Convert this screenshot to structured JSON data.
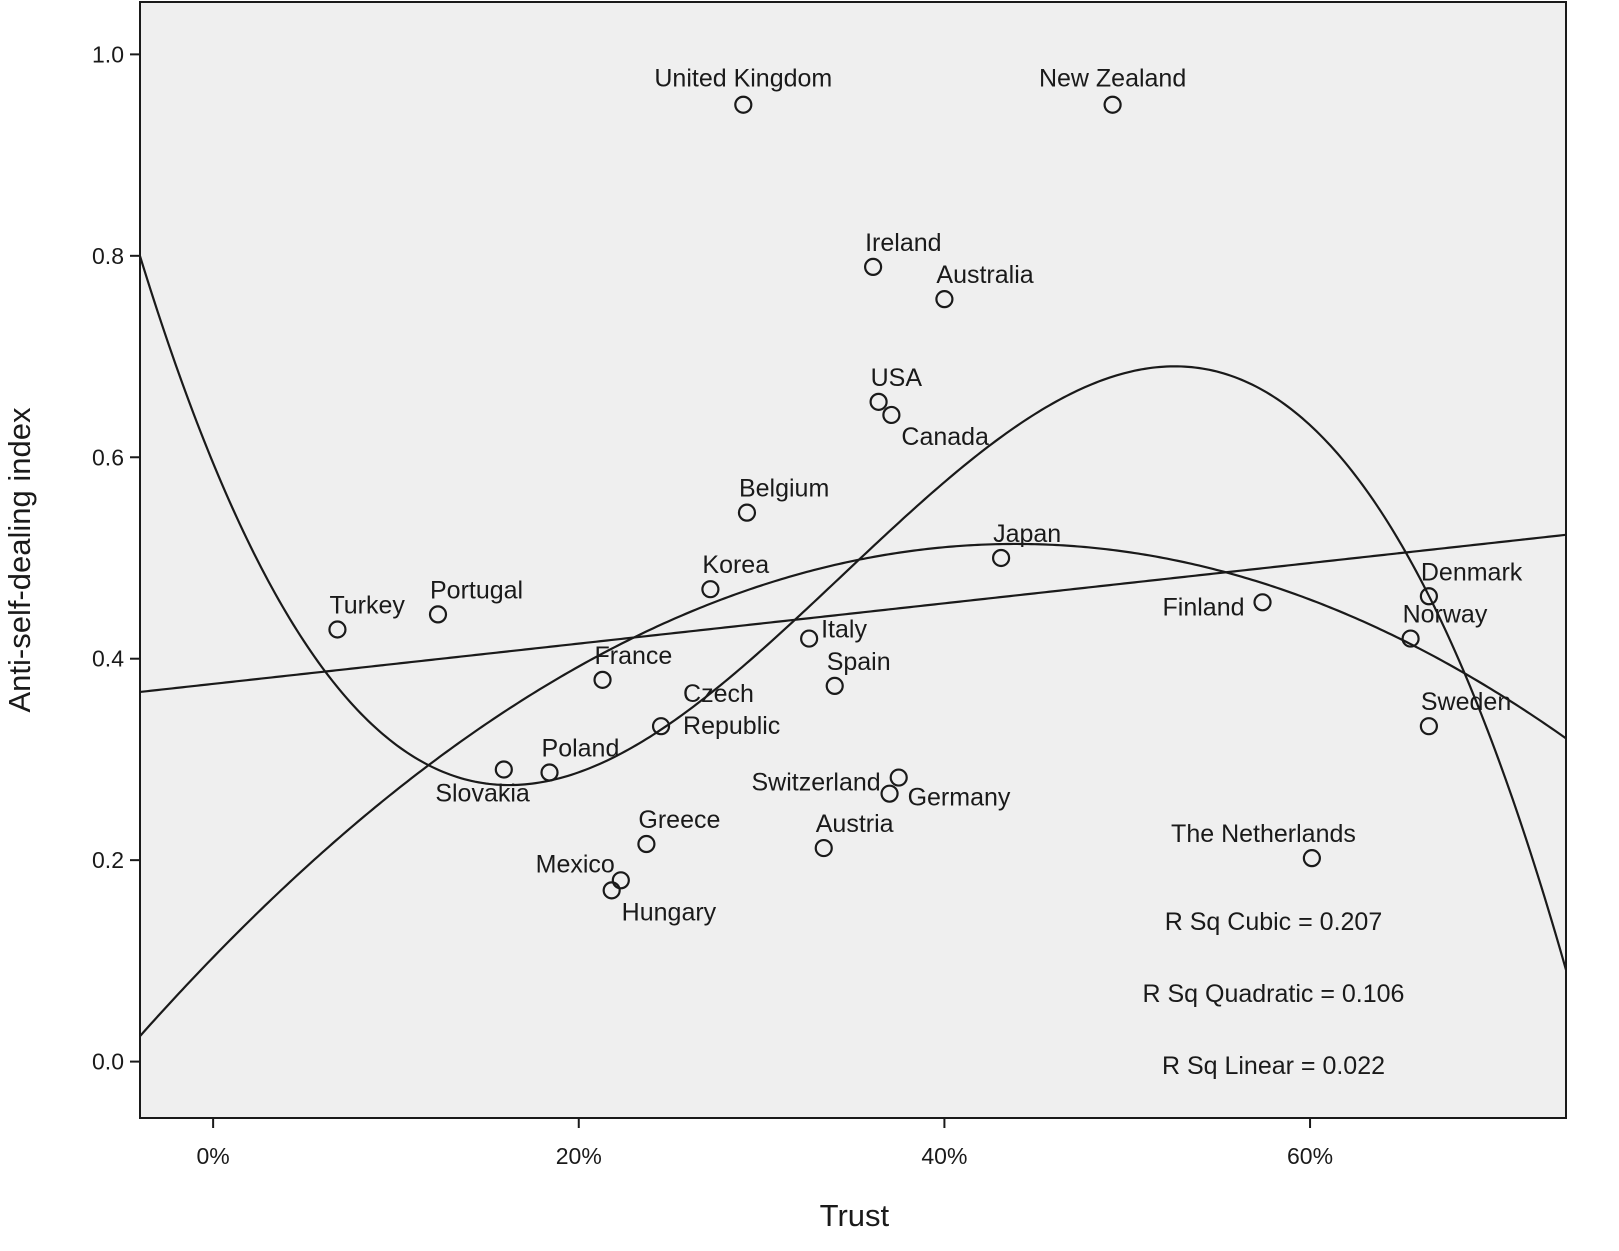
{
  "chart_data": {
    "type": "scatter",
    "xlabel": "Trust",
    "ylabel": "Anti-self-dealing index",
    "xlim": [
      -0.04,
      0.74
    ],
    "ylim": [
      -0.056,
      1.052
    ],
    "x_ticks": [
      {
        "value": 0.0,
        "label": "0%"
      },
      {
        "value": 0.2,
        "label": "20%"
      },
      {
        "value": 0.4,
        "label": "40%"
      },
      {
        "value": 0.6,
        "label": "60%"
      }
    ],
    "y_ticks": [
      {
        "value": 0.0,
        "label": "0.0"
      },
      {
        "value": 0.2,
        "label": "0.2"
      },
      {
        "value": 0.4,
        "label": "0.4"
      },
      {
        "value": 0.6,
        "label": "0.6"
      },
      {
        "value": 0.8,
        "label": "0.8"
      },
      {
        "value": 1.0,
        "label": "1.0"
      }
    ],
    "grid": false,
    "background": "#efefef",
    "line_color": "#1a1a1a",
    "points": [
      {
        "label": "United Kingdom",
        "x": 0.29,
        "y": 0.95,
        "anchor": "above"
      },
      {
        "label": "New Zealand",
        "x": 0.492,
        "y": 0.95,
        "anchor": "above"
      },
      {
        "label": "Ireland",
        "x": 0.361,
        "y": 0.789,
        "anchor": "above-right"
      },
      {
        "label": "Australia",
        "x": 0.4,
        "y": 0.757,
        "anchor": "above-right"
      },
      {
        "label": "USA",
        "x": 0.364,
        "y": 0.655,
        "anchor": "above-right"
      },
      {
        "label": "Canada",
        "x": 0.371,
        "y": 0.642,
        "anchor": "below-right"
      },
      {
        "label": "Belgium",
        "x": 0.292,
        "y": 0.545,
        "anchor": "above-right"
      },
      {
        "label": "Japan",
        "x": 0.431,
        "y": 0.5,
        "anchor": "above-right"
      },
      {
        "label": "Korea",
        "x": 0.272,
        "y": 0.469,
        "anchor": "above-right"
      },
      {
        "label": "Turkey",
        "x": 0.068,
        "y": 0.429,
        "anchor": "above-right"
      },
      {
        "label": "Portugal",
        "x": 0.123,
        "y": 0.444,
        "anchor": "above-right"
      },
      {
        "label": "Finland",
        "x": 0.574,
        "y": 0.456,
        "anchor": "left"
      },
      {
        "label": "Denmark",
        "x": 0.665,
        "y": 0.462,
        "anchor": "above-right"
      },
      {
        "label": "Norway",
        "x": 0.655,
        "y": 0.42,
        "anchor": "above-right"
      },
      {
        "label": "Italy",
        "x": 0.326,
        "y": 0.42,
        "anchor": "right"
      },
      {
        "label": "France",
        "x": 0.213,
        "y": 0.379,
        "anchor": "above-right"
      },
      {
        "label": "Spain",
        "x": 0.34,
        "y": 0.373,
        "anchor": "above-right"
      },
      {
        "label": "Sweden",
        "x": 0.665,
        "y": 0.333,
        "anchor": "above-right"
      },
      {
        "label": "Czech Republic",
        "x": 0.245,
        "y": 0.333,
        "anchor": "right-2line"
      },
      {
        "label": "Poland",
        "x": 0.184,
        "y": 0.287,
        "anchor": "above-right"
      },
      {
        "label": "Slovakia",
        "x": 0.159,
        "y": 0.29,
        "anchor": "below-left"
      },
      {
        "label": "Switzerland",
        "x": 0.375,
        "y": 0.282,
        "anchor": "left"
      },
      {
        "label": "Germany",
        "x": 0.37,
        "y": 0.266,
        "anchor": "right"
      },
      {
        "label": "Greece",
        "x": 0.237,
        "y": 0.216,
        "anchor": "above-right"
      },
      {
        "label": "Austria",
        "x": 0.334,
        "y": 0.212,
        "anchor": "above-right"
      },
      {
        "label": "The Netherlands",
        "x": 0.601,
        "y": 0.202,
        "anchor": "above-left"
      },
      {
        "label": "Mexico",
        "x": 0.223,
        "y": 0.18,
        "anchor": "left-up"
      },
      {
        "label": "Hungary",
        "x": 0.218,
        "y": 0.17,
        "anchor": "below-right"
      }
    ],
    "fits": [
      {
        "name": "Linear",
        "degree": 1,
        "coefficients": [
          0.375,
          0.2
        ],
        "r_squared": "R Sq Linear = 0.022"
      },
      {
        "name": "Quadratic",
        "degree": 2,
        "coefficients": [
          0.1035,
          1.87,
          -2.13
        ],
        "r_squared": "R Sq Quadratic = 0.106"
      },
      {
        "name": "Cubic",
        "degree": 3,
        "coefficients": [
          0.5942,
          -4.4,
          17.77,
          -17.22
        ],
        "r_squared": "R Sq Cubic = 0.207"
      }
    ]
  }
}
